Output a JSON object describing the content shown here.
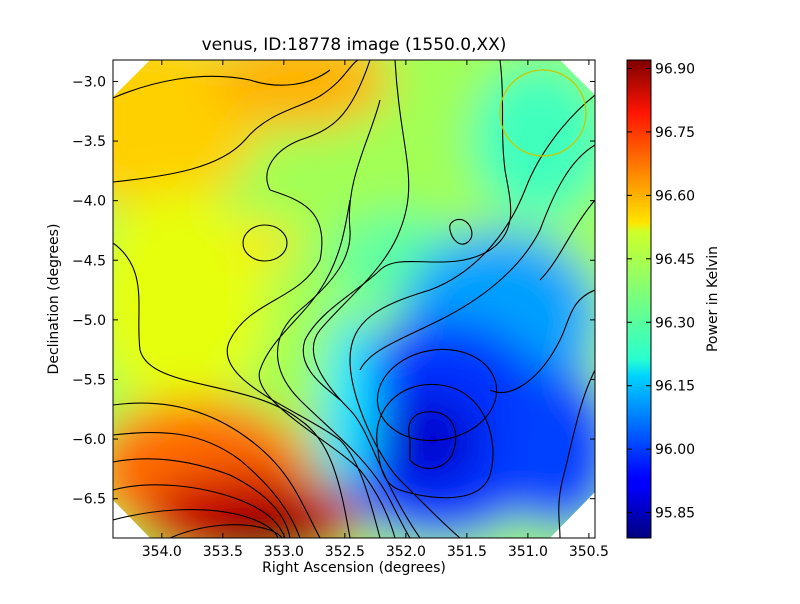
{
  "chart_data": {
    "type": "heatmap",
    "title": "venus, ID:18778 image (1550.0,XX)",
    "xlabel": "Right Ascension (degrees)",
    "ylabel": "Declination (degrees)",
    "colorbar_label": "Power in Kelvin",
    "x_axis": {
      "inverted": true,
      "xlim": [
        354.4,
        350.45
      ],
      "ticks": [
        354.0,
        353.5,
        353.0,
        352.5,
        352.0,
        351.5,
        351.0,
        350.5
      ],
      "tick_labels": [
        "354.0",
        "353.5",
        "353.0",
        "352.5",
        "352.0",
        "351.5",
        "351.0",
        "350.5"
      ]
    },
    "y_axis": {
      "ylim": [
        -6.83,
        -2.82
      ],
      "ticks": [
        -3.0,
        -3.5,
        -4.0,
        -4.5,
        -5.0,
        -5.5,
        -6.0,
        -6.5
      ],
      "tick_labels": [
        "−3.0",
        "−3.5",
        "−4.0",
        "−4.5",
        "−5.0",
        "−5.5",
        "−6.0",
        "−6.5"
      ]
    },
    "colorbar": {
      "colormap": "jet",
      "range": [
        95.79,
        96.92
      ],
      "ticks": [
        96.9,
        96.75,
        96.6,
        96.45,
        96.3,
        96.15,
        96.0,
        95.85
      ],
      "tick_labels": [
        "96.90",
        "96.75",
        "96.60",
        "96.45",
        "96.30",
        "96.15",
        "96.00",
        "95.85"
      ]
    },
    "grid": false,
    "features": [
      {
        "kind": "maximum",
        "ra": 353.15,
        "dec": -6.75,
        "value": 96.9
      },
      {
        "kind": "minimum",
        "ra": 351.82,
        "dec": -6.02,
        "value": 95.82
      },
      {
        "kind": "local-maximum",
        "ra": 353.25,
        "dec": -4.37,
        "value": 96.5
      },
      {
        "kind": "local-bump",
        "ra": 351.6,
        "dec": -4.27,
        "value": 96.3
      }
    ],
    "beam_marker": {
      "shape": "circle",
      "ra": 350.85,
      "dec": -3.25,
      "radius_deg": 0.37,
      "color": "#c8c800"
    }
  }
}
